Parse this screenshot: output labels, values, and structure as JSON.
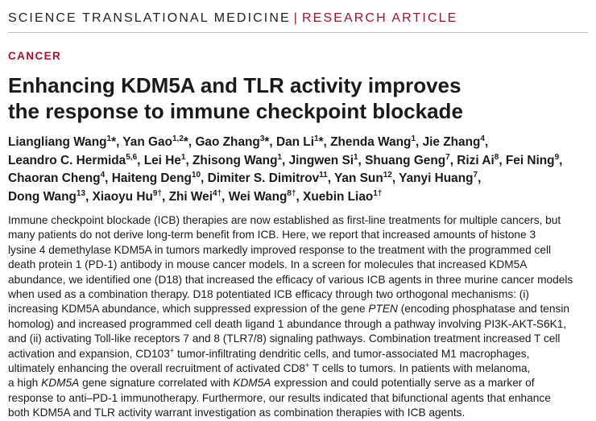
{
  "header": {
    "journal": "SCIENCE TRANSLATIONAL MEDICINE",
    "separator": "|",
    "article_type": "RESEARCH ARTICLE"
  },
  "category": "CANCER",
  "title_lines": [
    "Enhancing KDM5A and TLR activity improves",
    "the response to immune checkpoint blockade"
  ],
  "author_lines": [
    [
      {
        "name": "Liangliang Wang",
        "sup": "1",
        "mark": "*",
        "sep": ", "
      },
      {
        "name": "Yan Gao",
        "sup": "1,2",
        "mark": "*",
        "sep": ", "
      },
      {
        "name": "Gao Zhang",
        "sup": "3",
        "mark": "*",
        "sep": ", "
      },
      {
        "name": "Dan Li",
        "sup": "1",
        "mark": "*",
        "sep": ", "
      },
      {
        "name": "Zhenda Wang",
        "sup": "1",
        "mark": "",
        "sep": ", "
      },
      {
        "name": "Jie Zhang",
        "sup": "4",
        "mark": "",
        "sep": ","
      }
    ],
    [
      {
        "name": "Leandro C. Hermida",
        "sup": "5,6",
        "mark": "",
        "sep": ", "
      },
      {
        "name": "Lei He",
        "sup": "1",
        "mark": "",
        "sep": ", "
      },
      {
        "name": "Zhisong Wang",
        "sup": "1",
        "mark": "",
        "sep": ", "
      },
      {
        "name": "Jingwen Si",
        "sup": "1",
        "mark": "",
        "sep": ", "
      },
      {
        "name": "Shuang Geng",
        "sup": "7",
        "mark": "",
        "sep": ", "
      },
      {
        "name": "Rizi Ai",
        "sup": "8",
        "mark": "",
        "sep": ", "
      },
      {
        "name": "Fei Ning",
        "sup": "9",
        "mark": "",
        "sep": ","
      }
    ],
    [
      {
        "name": "Chaoran Cheng",
        "sup": "4",
        "mark": "",
        "sep": ", "
      },
      {
        "name": "Haiteng Deng",
        "sup": "10",
        "mark": "",
        "sep": ", "
      },
      {
        "name": "Dimiter S. Dimitrov",
        "sup": "11",
        "mark": "",
        "sep": ", "
      },
      {
        "name": "Yan Sun",
        "sup": "12",
        "mark": "",
        "sep": ", "
      },
      {
        "name": "Yanyi Huang",
        "sup": "7",
        "mark": "",
        "sep": ","
      }
    ],
    [
      {
        "name": "Dong Wang",
        "sup": "13",
        "mark": "",
        "sep": ", "
      },
      {
        "name": "Xiaoyu Hu",
        "sup": "9",
        "mark": "†",
        "sep": ", "
      },
      {
        "name": "Zhi Wei",
        "sup": "4",
        "mark": "†",
        "sep": ", "
      },
      {
        "name": "Wei Wang",
        "sup": "8",
        "mark": "†",
        "sep": ", "
      },
      {
        "name": "Xuebin Liao",
        "sup": "1",
        "mark": "†",
        "sep": ""
      }
    ]
  ],
  "abstract_lines": [
    [
      {
        "t": "Immune checkpoint blockade (ICB) therapies are now established as first-line treatments for multiple cancers, but"
      }
    ],
    [
      {
        "t": "many patients do not derive long-term benefit from ICB. Here, we report that increased amounts of histone 3"
      }
    ],
    [
      {
        "t": "lysine 4 demethylase KDM5A in tumors markedly improved response to the treatment with the programmed cell"
      }
    ],
    [
      {
        "t": "death protein 1 (PD-1) antibody in mouse cancer models. In a screen for molecules that increased KDM5A"
      }
    ],
    [
      {
        "t": "abundance, we identified one (D18) that increased the efficacy of various ICB agents in three murine cancer models"
      }
    ],
    [
      {
        "t": "when used as a combination therapy. D18 potentiated ICB efficacy through two orthogonal mechanisms: (i)"
      }
    ],
    [
      {
        "t": "increasing KDM5A abundance, which suppressed expression of the gene "
      },
      {
        "t": "PTEN",
        "s": "i"
      },
      {
        "t": " (encoding phosphatase and tensin"
      }
    ],
    [
      {
        "t": "homolog) and increased programmed cell death ligand 1 abundance through a pathway involving PI3K-AKT-S6K1,"
      }
    ],
    [
      {
        "t": "and (ii) activating Toll-like receptors 7 and 8 (TLR7/8) signaling pathways. Combination treatment increased T cell"
      }
    ],
    [
      {
        "t": "activation and expansion, CD103"
      },
      {
        "t": "+",
        "s": "sup"
      },
      {
        "t": " tumor-infiltrating dendritic cells, and tumor-associated M1 macrophages,"
      }
    ],
    [
      {
        "t": "ultimately enhancing the overall recruitment of activated CD8"
      },
      {
        "t": "+",
        "s": "sup"
      },
      {
        "t": " T cells to tumors. In patients with melanoma,"
      }
    ],
    [
      {
        "t": "a high "
      },
      {
        "t": "KDM5A",
        "s": "i"
      },
      {
        "t": " gene signature correlated with "
      },
      {
        "t": "KDM5A",
        "s": "i"
      },
      {
        "t": " expression and could potentially serve as a marker of"
      }
    ],
    [
      {
        "t": "response to anti–PD-1 immunotherapy. Furthermore, our results indicated that bifunctional agents that enhance"
      }
    ],
    [
      {
        "t": "both KDM5A and TLR activity warrant investigation as combination therapies with ICB agents."
      }
    ]
  ]
}
